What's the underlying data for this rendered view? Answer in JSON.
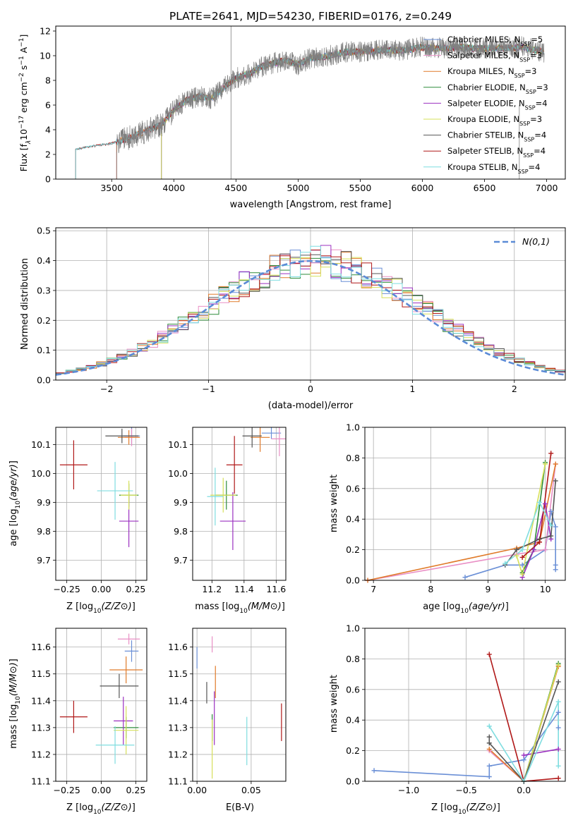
{
  "figure": {
    "title": "PLATE=2641, MJD=54230, FIBERID=0176, z=0.249"
  },
  "colors": {
    "Chabrier MILES": "#6a8fd6",
    "Salpeter MILES": "#e98fc5",
    "Kroupa MILES": "#e07b2a",
    "Chabrier ELODIE": "#2e8b3a",
    "Salpeter ELODIE": "#9b30c0",
    "Kroupa ELODIE": "#d6e05a",
    "Chabrier STELIB": "#555555",
    "Salpeter STELIB": "#b01818",
    "Kroupa STELIB": "#7fdde0"
  },
  "chart_data": [
    {
      "id": "spectrum",
      "type": "line",
      "title": "PLATE=2641, MJD=54230, FIBERID=0176, z=0.249",
      "xlabel": "wavelength [Angstrom, rest frame]",
      "ylabel_parts": [
        "Flux [f",
        "λ",
        "10",
        "−17",
        " erg cm",
        "−2",
        " s",
        "−1",
        " A",
        "−1",
        "]"
      ],
      "xlim": [
        3050,
        7150
      ],
      "ylim": [
        0,
        12.4
      ],
      "xticks": [
        3500,
        4000,
        4500,
        5000,
        5500,
        6000,
        6500,
        7000
      ],
      "yticks": [
        0,
        2,
        4,
        6,
        8,
        10,
        12
      ],
      "continuum": [
        [
          3210,
          2.4
        ],
        [
          3300,
          2.6
        ],
        [
          3500,
          2.9
        ],
        [
          3600,
          3.2
        ],
        [
          3700,
          3.6
        ],
        [
          3800,
          4.0
        ],
        [
          3900,
          4.4
        ],
        [
          4000,
          5.6
        ],
        [
          4100,
          6.4
        ],
        [
          4200,
          6.7
        ],
        [
          4300,
          6.5
        ],
        [
          4400,
          7.4
        ],
        [
          4500,
          8.2
        ],
        [
          4600,
          8.5
        ],
        [
          4700,
          9.1
        ],
        [
          4800,
          9.4
        ],
        [
          4900,
          9.6
        ],
        [
          5000,
          9.3
        ],
        [
          5100,
          9.8
        ],
        [
          5200,
          9.9
        ],
        [
          5300,
          10.1
        ],
        [
          5400,
          10.3
        ],
        [
          5500,
          10.3
        ],
        [
          5600,
          10.4
        ],
        [
          5700,
          10.5
        ],
        [
          5800,
          10.4
        ],
        [
          5900,
          10.5
        ],
        [
          6000,
          10.7
        ],
        [
          6100,
          10.6
        ],
        [
          6200,
          10.6
        ],
        [
          6300,
          10.7
        ],
        [
          6400,
          10.6
        ],
        [
          6500,
          10.6
        ],
        [
          6600,
          10.6
        ],
        [
          6700,
          10.6
        ],
        [
          6800,
          10.7
        ],
        [
          6900,
          10.5
        ],
        [
          6980,
          10.3
        ]
      ],
      "series": [
        {
          "name": "Chabrier MILES, N_SSP=5",
          "label_main": "Chabrier MILES, N",
          "label_sub": "SSP",
          "label_tail": "=5",
          "start": 3540
        },
        {
          "name": "Salpeter MILES, N_SSP=3",
          "label_main": "Salpeter MILES, N",
          "label_sub": "SSP",
          "label_tail": "=3",
          "start": 3540
        },
        {
          "name": "Kroupa MILES, N_SSP=3",
          "label_main": "Kroupa MILES, N",
          "label_sub": "SSP",
          "label_tail": "=3",
          "start": 3540
        },
        {
          "name": "Chabrier ELODIE, N_SSP=3",
          "label_main": "Chabrier ELODIE, N",
          "label_sub": "SSP",
          "label_tail": "=3",
          "start": 3900
        },
        {
          "name": "Salpeter ELODIE, N_SSP=4",
          "label_main": "Salpeter ELODIE, N",
          "label_sub": "SSP",
          "label_tail": "=4",
          "start": 3900
        },
        {
          "name": "Kroupa ELODIE, N_SSP=3",
          "label_main": "Kroupa ELODIE, N",
          "label_sub": "SSP",
          "label_tail": "=3",
          "start": 3900
        },
        {
          "name": "Chabrier STELIB, N_SSP=4",
          "label_main": "Chabrier STELIB, N",
          "label_sub": "SSP",
          "label_tail": "=4",
          "start": 3210
        },
        {
          "name": "Salpeter STELIB, N_SSP=4",
          "label_main": "Salpeter STELIB, N",
          "label_sub": "SSP",
          "label_tail": "=4",
          "start": 3210
        },
        {
          "name": "Kroupa STELIB, N_SSP=4",
          "label_main": "Kroupa STELIB, N",
          "label_sub": "SSP",
          "label_tail": "=4",
          "start": 3210
        }
      ],
      "data_line_start": 3540,
      "legend_position": "right"
    },
    {
      "id": "residuals",
      "type": "line",
      "xlabel": "(data-model)/error",
      "ylabel": "Normed distribution",
      "xlim": [
        -2.5,
        2.5
      ],
      "ylim": [
        0,
        0.51
      ],
      "xticks": [
        -2,
        -1,
        0,
        1,
        2
      ],
      "yticks": [
        0.0,
        0.1,
        0.2,
        0.3,
        0.4,
        0.5
      ],
      "grid": true,
      "normal_label": "N(0,1)",
      "normal_curve": {
        "mean": 0,
        "sigma": 1,
        "dash": true
      },
      "bin_width": 0.1,
      "bin_start": -2.5,
      "legend_position": "upper right"
    },
    {
      "id": "age-vs-Z",
      "type": "scatter",
      "xlabel": "Z [log10(Z/Z⊙)]",
      "ylabel": "age [log10(age/yr)]",
      "xlim": [
        -0.33,
        0.33
      ],
      "ylim": [
        9.63,
        10.16
      ],
      "xticks": [
        -0.25,
        0.0,
        0.25
      ],
      "yticks": [
        9.7,
        9.8,
        9.9,
        10.0,
        10.1
      ],
      "grid": true,
      "points": [
        {
          "model": "Chabrier MILES",
          "x": 0.22,
          "xerr": 0.06,
          "y": 10.13,
          "yerr": 0.03
        },
        {
          "model": "Salpeter MILES",
          "x": 0.22,
          "xerr": 0.05,
          "y": 10.125,
          "yerr": 0.03
        },
        {
          "model": "Kroupa MILES",
          "x": 0.2,
          "xerr": 0.08,
          "y": 10.125,
          "yerr": 0.025
        },
        {
          "model": "Chabrier ELODIE",
          "x": 0.2,
          "xerr": 0.07,
          "y": 9.925,
          "yerr": 0.04
        },
        {
          "model": "Salpeter ELODIE",
          "x": 0.2,
          "xerr": 0.07,
          "y": 9.835,
          "yerr": 0.09
        },
        {
          "model": "Kroupa ELODIE",
          "x": 0.2,
          "xerr": 0.06,
          "y": 9.925,
          "yerr": 0.05
        },
        {
          "model": "Chabrier STELIB",
          "x": 0.15,
          "xerr": 0.12,
          "y": 10.13,
          "yerr": 0.025
        },
        {
          "model": "Salpeter STELIB",
          "x": -0.2,
          "xerr": 0.1,
          "y": 10.03,
          "yerr": 0.085
        },
        {
          "model": "Kroupa STELIB",
          "x": 0.1,
          "xerr": 0.13,
          "y": 9.94,
          "yerr": 0.1
        }
      ]
    },
    {
      "id": "age-vs-mass",
      "type": "scatter",
      "xlabel": "mass [log10(M/M⊙)]",
      "ylabel": "",
      "xlim": [
        11.08,
        11.66
      ],
      "ylim": [
        9.63,
        10.16
      ],
      "xticks": [
        11.2,
        11.4,
        11.6
      ],
      "yticks": [
        9.7,
        9.8,
        9.9,
        10.0,
        10.1
      ],
      "grid": true,
      "points": [
        {
          "model": "Chabrier MILES",
          "x": 11.57,
          "xerr": 0.06,
          "y": 10.14,
          "yerr": 0.02
        },
        {
          "model": "Salpeter MILES",
          "x": 11.62,
          "xerr": 0.05,
          "y": 10.12,
          "yerr": 0.06
        },
        {
          "model": "Kroupa MILES",
          "x": 11.5,
          "xerr": 0.06,
          "y": 10.125,
          "yerr": 0.05
        },
        {
          "model": "Chabrier ELODIE",
          "x": 11.29,
          "xerr": 0.07,
          "y": 9.925,
          "yerr": 0.05
        },
        {
          "model": "Salpeter ELODIE",
          "x": 11.33,
          "xerr": 0.08,
          "y": 9.835,
          "yerr": 0.1
        },
        {
          "model": "Kroupa ELODIE",
          "x": 11.27,
          "xerr": 0.08,
          "y": 9.925,
          "yerr": 0.06
        },
        {
          "model": "Chabrier STELIB",
          "x": 11.45,
          "xerr": 0.06,
          "y": 10.13,
          "yerr": 0.04
        },
        {
          "model": "Salpeter STELIB",
          "x": 11.34,
          "xerr": 0.05,
          "y": 10.03,
          "yerr": 0.1
        },
        {
          "model": "Kroupa STELIB",
          "x": 11.22,
          "xerr": 0.05,
          "y": 9.92,
          "yerr": 0.1
        }
      ]
    },
    {
      "id": "weight-vs-age",
      "type": "line",
      "xlabel": "age [log10(age/yr)]",
      "ylabel": "mass weight",
      "xlim": [
        6.85,
        10.35
      ],
      "ylim": [
        0,
        1.0
      ],
      "xticks": [
        7,
        8,
        9,
        10
      ],
      "yticks": [
        0.0,
        0.2,
        0.4,
        0.6,
        0.8,
        1.0
      ],
      "grid": true,
      "series": [
        {
          "model": "Chabrier MILES",
          "points": [
            [
              8.6,
              0.02
            ],
            [
              9.3,
              0.1
            ],
            [
              9.6,
              0.1
            ],
            [
              10.0,
              0.2
            ],
            [
              10.1,
              0.45
            ],
            [
              10.18,
              0.35
            ],
            [
              10.18,
              0.1
            ],
            [
              10.18,
              0.07
            ]
          ]
        },
        {
          "model": "Salpeter MILES",
          "points": [
            [
              6.9,
              0.0
            ],
            [
              9.5,
              0.17
            ],
            [
              10.0,
              0.2
            ],
            [
              10.18,
              0.76
            ]
          ]
        },
        {
          "model": "Kroupa MILES",
          "points": [
            [
              6.9,
              0.0
            ],
            [
              9.5,
              0.21
            ],
            [
              9.9,
              0.25
            ],
            [
              10.18,
              0.76
            ]
          ]
        },
        {
          "model": "Chabrier ELODIE",
          "points": [
            [
              9.6,
              0.05
            ],
            [
              9.8,
              0.2
            ],
            [
              10.0,
              0.77
            ]
          ]
        },
        {
          "model": "Salpeter ELODIE",
          "points": [
            [
              9.6,
              0.02
            ],
            [
              9.8,
              0.2
            ],
            [
              10.0,
              0.5
            ],
            [
              10.1,
              0.27
            ]
          ]
        },
        {
          "model": "Kroupa ELODIE",
          "points": [
            [
              9.5,
              0.16
            ],
            [
              9.6,
              0.04
            ],
            [
              10.0,
              0.76
            ]
          ]
        },
        {
          "model": "Chabrier STELIB",
          "points": [
            [
              9.3,
              0.1
            ],
            [
              9.5,
              0.2
            ],
            [
              9.9,
              0.27
            ],
            [
              10.1,
              0.29
            ],
            [
              10.18,
              0.65
            ]
          ]
        },
        {
          "model": "Salpeter STELIB",
          "points": [
            [
              9.6,
              0.15
            ],
            [
              9.9,
              0.25
            ],
            [
              10.1,
              0.83
            ]
          ]
        },
        {
          "model": "Kroupa STELIB",
          "points": [
            [
              9.3,
              0.11
            ],
            [
              9.6,
              0.2
            ],
            [
              9.9,
              0.51
            ],
            [
              10.1,
              0.36
            ]
          ]
        }
      ]
    },
    {
      "id": "mass-vs-Z",
      "type": "scatter",
      "xlabel": "Z [log10(Z/Z⊙)]",
      "ylabel": "mass [log10(M/M⊙)]",
      "xlim": [
        -0.33,
        0.33
      ],
      "ylim": [
        11.1,
        11.67
      ],
      "xticks": [
        -0.25,
        0.0,
        0.25
      ],
      "yticks": [
        11.1,
        11.2,
        11.3,
        11.4,
        11.5,
        11.6
      ],
      "grid": true,
      "points": [
        {
          "model": "Chabrier MILES",
          "x": 0.22,
          "xerr": 0.05,
          "y": 11.585,
          "yerr": 0.04
        },
        {
          "model": "Salpeter MILES",
          "x": 0.2,
          "xerr": 0.08,
          "y": 11.63,
          "yerr": 0.02
        },
        {
          "model": "Kroupa MILES",
          "x": 0.18,
          "xerr": 0.12,
          "y": 11.515,
          "yerr": 0.05
        },
        {
          "model": "Chabrier ELODIE",
          "x": 0.18,
          "xerr": 0.09,
          "y": 11.3,
          "yerr": 0.04
        },
        {
          "model": "Salpeter ELODIE",
          "x": 0.16,
          "xerr": 0.07,
          "y": 11.325,
          "yerr": 0.09
        },
        {
          "model": "Kroupa ELODIE",
          "x": 0.18,
          "xerr": 0.09,
          "y": 11.29,
          "yerr": 0.09
        },
        {
          "model": "Chabrier STELIB",
          "x": 0.13,
          "xerr": 0.14,
          "y": 11.455,
          "yerr": 0.045
        },
        {
          "model": "Salpeter STELIB",
          "x": -0.2,
          "xerr": 0.1,
          "y": 11.34,
          "yerr": 0.06
        },
        {
          "model": "Kroupa STELIB",
          "x": 0.1,
          "xerr": 0.14,
          "y": 11.235,
          "yerr": 0.07
        }
      ]
    },
    {
      "id": "mass-vs-ebv",
      "type": "scatter",
      "xlabel": "E(B-V)",
      "ylabel": "",
      "xlim": [
        -0.004,
        0.082
      ],
      "ylim": [
        11.1,
        11.67
      ],
      "xticks": [
        0.0,
        0.05
      ],
      "yticks": [
        11.1,
        11.2,
        11.3,
        11.4,
        11.5,
        11.6
      ],
      "grid": true,
      "points": [
        {
          "model": "Chabrier MILES",
          "x": 0.0,
          "xerr": 0,
          "y": 11.56,
          "yerr": 0.04
        },
        {
          "model": "Salpeter MILES",
          "x": 0.014,
          "xerr": 0,
          "y": 11.61,
          "yerr": 0.03
        },
        {
          "model": "Kroupa MILES",
          "x": 0.017,
          "xerr": 0,
          "y": 11.47,
          "yerr": 0.06
        },
        {
          "model": "Chabrier ELODIE",
          "x": 0.014,
          "xerr": 0,
          "y": 11.3,
          "yerr": 0.05
        },
        {
          "model": "Salpeter ELODIE",
          "x": 0.016,
          "xerr": 0,
          "y": 11.335,
          "yerr": 0.1
        },
        {
          "model": "Kroupa ELODIE",
          "x": 0.014,
          "xerr": 0,
          "y": 11.22,
          "yerr": 0.11
        },
        {
          "model": "Chabrier STELIB",
          "x": 0.009,
          "xerr": 0,
          "y": 11.43,
          "yerr": 0.04
        },
        {
          "model": "Salpeter STELIB",
          "x": 0.078,
          "xerr": 0,
          "y": 11.32,
          "yerr": 0.07
        },
        {
          "model": "Kroupa STELIB",
          "x": 0.046,
          "xerr": 0,
          "y": 11.25,
          "yerr": 0.09
        }
      ]
    },
    {
      "id": "weight-vs-Z",
      "type": "line",
      "xlabel": "Z [log10(Z/Z⊙)]",
      "ylabel": "mass weight",
      "xlim": [
        -1.38,
        0.36
      ],
      "ylim": [
        0,
        1.0
      ],
      "xticks": [
        -1.0,
        -0.5,
        0.0
      ],
      "yticks": [
        0.0,
        0.2,
        0.4,
        0.6,
        0.8,
        1.0
      ],
      "grid": true,
      "series": [
        {
          "model": "Chabrier MILES",
          "points": [
            [
              -1.3,
              0.07
            ],
            [
              -0.3,
              0.03
            ],
            [
              -0.3,
              0.1
            ],
            [
              0.0,
              0.14
            ],
            [
              0.3,
              0.45
            ],
            [
              0.3,
              0.35
            ]
          ]
        },
        {
          "model": "Salpeter MILES",
          "points": [
            [
              -0.3,
              0.2
            ],
            [
              0.0,
              0.0
            ],
            [
              0.3,
              0.76
            ]
          ]
        },
        {
          "model": "Kroupa MILES",
          "points": [
            [
              -0.3,
              0.21
            ],
            [
              0.0,
              0.0
            ],
            [
              0.3,
              0.75
            ]
          ]
        },
        {
          "model": "Chabrier ELODIE",
          "points": [
            [
              0.0,
              0.0
            ],
            [
              0.3,
              0.77
            ]
          ]
        },
        {
          "model": "Salpeter ELODIE",
          "points": [
            [
              0.0,
              0.17
            ],
            [
              0.3,
              0.21
            ]
          ]
        },
        {
          "model": "Kroupa ELODIE",
          "points": [
            [
              0.0,
              0.0
            ],
            [
              0.3,
              0.76
            ]
          ]
        },
        {
          "model": "Chabrier STELIB",
          "points": [
            [
              -0.3,
              0.29
            ],
            [
              -0.3,
              0.25
            ],
            [
              0.0,
              0.0
            ],
            [
              0.3,
              0.65
            ]
          ]
        },
        {
          "model": "Salpeter STELIB",
          "points": [
            [
              -0.3,
              0.83
            ],
            [
              0.0,
              0.0
            ],
            [
              0.3,
              0.02
            ]
          ]
        },
        {
          "model": "Kroupa STELIB",
          "points": [
            [
              -0.3,
              0.36
            ],
            [
              0.0,
              0.0
            ],
            [
              0.3,
              0.52
            ],
            [
              0.3,
              0.1
            ]
          ]
        }
      ]
    }
  ]
}
